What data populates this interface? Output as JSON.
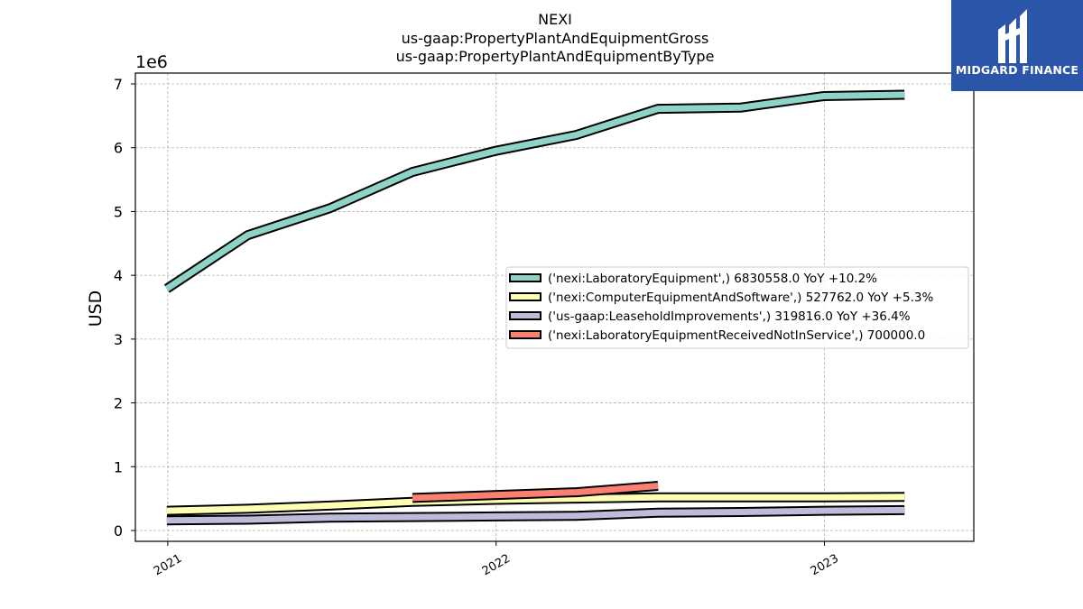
{
  "chart_data": {
    "type": "line",
    "title": [
      "NEXI",
      "us-gaap:PropertyPlantAndEquipmentGross",
      "us-gaap:PropertyPlantAndEquipmentByType"
    ],
    "xlabel": "",
    "ylabel": "USD",
    "y_offset_label": "1e6",
    "ylim": [
      -170000,
      7170000
    ],
    "xlim": [
      "2020-11-26",
      "2023-06-16"
    ],
    "yticks": [
      0,
      1000000,
      2000000,
      3000000,
      4000000,
      5000000,
      6000000,
      7000000
    ],
    "ytick_labels": [
      "0",
      "1",
      "2",
      "3",
      "4",
      "5",
      "6",
      "7"
    ],
    "xticks": [
      "2021-01-01",
      "2022-01-01",
      "2023-01-01"
    ],
    "xtick_labels": [
      "2021",
      "2022",
      "2023"
    ],
    "grid": true,
    "legend_position": "center-right",
    "series": [
      {
        "name": "('nexi:LaboratoryEquipment',) 6830558.0 YoY +10.2%",
        "color": "#8dd3c7",
        "points": [
          [
            "2020-12-31",
            3790000
          ],
          [
            "2021-03-31",
            4630000
          ],
          [
            "2021-06-30",
            5050000
          ],
          [
            "2021-09-30",
            5620000
          ],
          [
            "2021-12-31",
            5950000
          ],
          [
            "2022-03-31",
            6200000
          ],
          [
            "2022-06-30",
            6610000
          ],
          [
            "2022-09-30",
            6630000
          ],
          [
            "2022-12-31",
            6810000
          ],
          [
            "2023-03-31",
            6830558
          ]
        ]
      },
      {
        "name": "('nexi:ComputerEquipmentAndSoftware',) 527762.0 YoY +5.3%",
        "color": "#ffffb3",
        "points": [
          [
            "2020-12-31",
            310000
          ],
          [
            "2021-03-31",
            340000
          ],
          [
            "2021-06-30",
            390000
          ],
          [
            "2021-09-30",
            450000
          ],
          [
            "2021-12-31",
            480000
          ],
          [
            "2022-03-31",
            500000
          ],
          [
            "2022-06-30",
            520000
          ],
          [
            "2022-09-30",
            520000
          ],
          [
            "2022-12-31",
            520000
          ],
          [
            "2023-03-31",
            527762
          ]
        ]
      },
      {
        "name": "('us-gaap:LeaseholdImprovements',) 319816.0 YoY +36.4%",
        "color": "#bebada",
        "points": [
          [
            "2020-12-31",
            160000
          ],
          [
            "2021-03-31",
            170000
          ],
          [
            "2021-06-30",
            200000
          ],
          [
            "2021-09-30",
            210000
          ],
          [
            "2021-12-31",
            220000
          ],
          [
            "2022-03-31",
            230000
          ],
          [
            "2022-06-30",
            280000
          ],
          [
            "2022-09-30",
            290000
          ],
          [
            "2022-12-31",
            310000
          ],
          [
            "2023-03-31",
            319816
          ]
        ]
      },
      {
        "name": "('nexi:LaboratoryEquipmentReceivedNotInService',) 700000.0",
        "color": "#fb8072",
        "points": [
          [
            "2021-09-30",
            510000
          ],
          [
            "2022-03-31",
            600000
          ],
          [
            "2022-06-30",
            700000
          ]
        ]
      }
    ]
  },
  "logo": {
    "text": "MIDGARD FINANCE",
    "background": "#2a55a8"
  }
}
